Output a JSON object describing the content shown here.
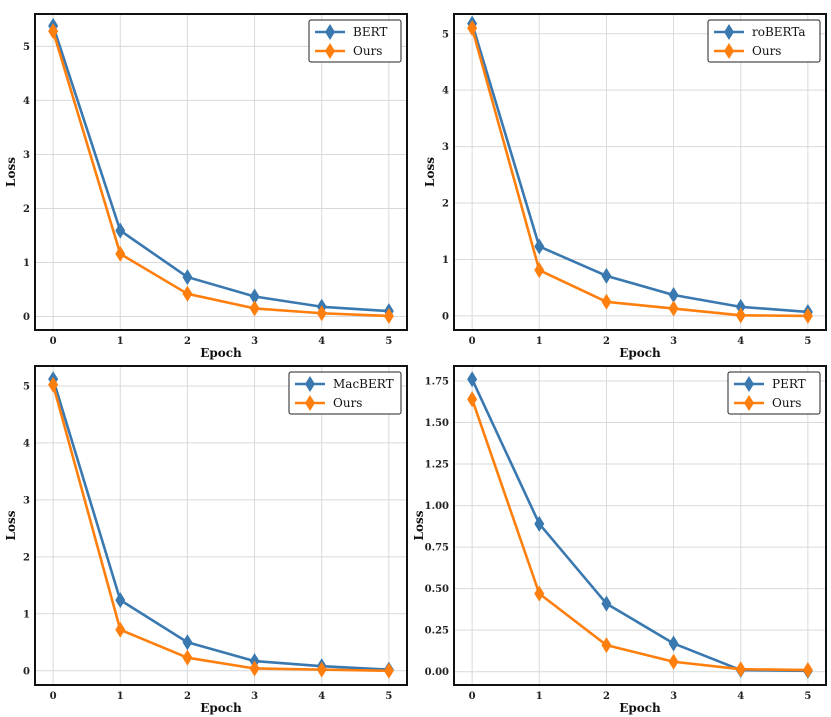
{
  "chart_data": [
    {
      "type": "line",
      "x": [
        0,
        1,
        2,
        3,
        4,
        5
      ],
      "xlabel": "Epoch",
      "ylabel": "Loss",
      "ylim": [
        -0.25,
        5.6
      ],
      "yticks": [
        0,
        1,
        2,
        3,
        4,
        5
      ],
      "ytick_labels": [
        "0",
        "1",
        "2",
        "3",
        "4",
        "5"
      ],
      "xtick_labels": [
        "0",
        "1",
        "2",
        "3",
        "4",
        "5"
      ],
      "grid": true,
      "legend_position": "top-right",
      "series": [
        {
          "name": "BERT",
          "color": "#3a78b0",
          "marker": "diamond",
          "values": [
            5.38,
            1.59,
            0.73,
            0.37,
            0.18,
            0.1
          ]
        },
        {
          "name": "Ours",
          "color": "#ff7f0e",
          "marker": "diamond",
          "values": [
            5.28,
            1.16,
            0.42,
            0.15,
            0.06,
            0.01
          ]
        }
      ]
    },
    {
      "type": "line",
      "x": [
        0,
        1,
        2,
        3,
        4,
        5
      ],
      "xlabel": "Epoch",
      "ylabel": "Loss",
      "ylim": [
        -0.25,
        5.35
      ],
      "yticks": [
        0,
        1,
        2,
        3,
        4,
        5
      ],
      "ytick_labels": [
        "0",
        "1",
        "2",
        "3",
        "4",
        "5"
      ],
      "xtick_labels": [
        "0",
        "1",
        "2",
        "3",
        "4",
        "5"
      ],
      "grid": true,
      "legend_position": "top-right",
      "series": [
        {
          "name": "roBERTa",
          "color": "#3a78b0",
          "marker": "diamond",
          "values": [
            5.18,
            1.23,
            0.71,
            0.37,
            0.16,
            0.07
          ]
        },
        {
          "name": "Ours",
          "color": "#ff7f0e",
          "marker": "diamond",
          "values": [
            5.1,
            0.81,
            0.25,
            0.13,
            0.01,
            0.0
          ]
        }
      ]
    },
    {
      "type": "line",
      "x": [
        0,
        1,
        2,
        3,
        4,
        5
      ],
      "xlabel": "Epoch",
      "ylabel": "Loss",
      "ylim": [
        -0.25,
        5.35
      ],
      "yticks": [
        0,
        1,
        2,
        3,
        4,
        5
      ],
      "ytick_labels": [
        "0",
        "1",
        "2",
        "3",
        "4",
        "5"
      ],
      "xtick_labels": [
        "0",
        "1",
        "2",
        "3",
        "4",
        "5"
      ],
      "grid": true,
      "legend_position": "top-right",
      "series": [
        {
          "name": "MacBERT",
          "color": "#3a78b0",
          "marker": "diamond",
          "values": [
            5.12,
            1.24,
            0.5,
            0.17,
            0.08,
            0.02
          ]
        },
        {
          "name": "Ours",
          "color": "#ff7f0e",
          "marker": "diamond",
          "values": [
            5.02,
            0.72,
            0.23,
            0.04,
            0.02,
            0.0
          ]
        }
      ]
    },
    {
      "type": "line",
      "x": [
        0,
        1,
        2,
        3,
        4,
        5
      ],
      "xlabel": "Epoch",
      "ylabel": "Loss",
      "ylim": [
        -0.08,
        1.84
      ],
      "yticks": [
        0,
        0.25,
        0.5,
        0.75,
        1.0,
        1.25,
        1.5,
        1.75
      ],
      "ytick_labels": [
        "0.00",
        "0.25",
        "0.50",
        "0.75",
        "1.00",
        "1.25",
        "1.50",
        "1.75"
      ],
      "xtick_labels": [
        "0",
        "1",
        "2",
        "3",
        "4",
        "5"
      ],
      "grid": true,
      "legend_position": "top-right",
      "series": [
        {
          "name": "PERT",
          "color": "#3a78b0",
          "marker": "diamond",
          "values": [
            1.76,
            0.89,
            0.41,
            0.17,
            0.01,
            0.005
          ]
        },
        {
          "name": "Ours",
          "color": "#ff7f0e",
          "marker": "diamond",
          "values": [
            1.64,
            0.47,
            0.16,
            0.06,
            0.015,
            0.01
          ]
        }
      ]
    }
  ]
}
